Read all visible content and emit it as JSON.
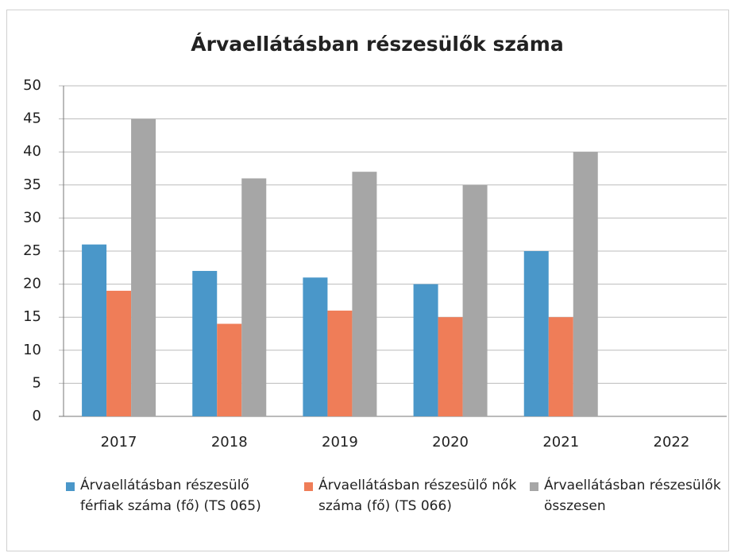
{
  "chart_data": {
    "type": "bar",
    "title": "Árvaellátásban részesülők száma",
    "categories": [
      "2017",
      "2018",
      "2019",
      "2020",
      "2021",
      "2022"
    ],
    "series": [
      {
        "name": "Árvaellátásban részesülő férfiak száma (fő) (TS 065)",
        "color": "#4a97c9",
        "values": [
          26,
          22,
          21,
          20,
          25,
          null
        ]
      },
      {
        "name": "Árvaellátásban részesülő nők száma (fő) (TS 066)",
        "color": "#ef7d58",
        "values": [
          19,
          14,
          16,
          15,
          15,
          null
        ]
      },
      {
        "name": "Árvaellátásban részesülők összesen",
        "color": "#a6a6a6",
        "values": [
          45,
          36,
          37,
          35,
          40,
          null
        ]
      }
    ],
    "ylim": [
      0,
      50
    ],
    "yticks": [
      0,
      5,
      10,
      15,
      20,
      25,
      30,
      35,
      40,
      45,
      50
    ],
    "grid": true
  }
}
